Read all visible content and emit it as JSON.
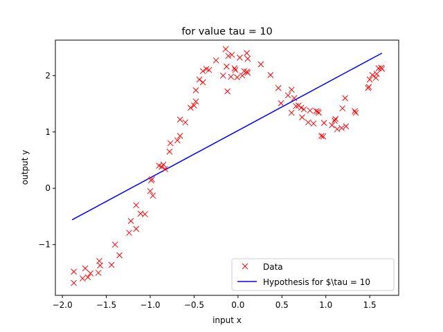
{
  "chart_data": {
    "type": "scatter",
    "title": "for value tau = 10",
    "xlabel": "input x",
    "ylabel": "output y",
    "xlim": [
      -2.08,
      1.83
    ],
    "ylim": [
      -1.9,
      2.63
    ],
    "xticks": [
      -2.0,
      -1.5,
      -1.0,
      -0.5,
      0.0,
      0.5,
      1.0,
      1.5
    ],
    "xtick_labels": [
      "−2.0",
      "−1.5",
      "−1.0",
      "−0.5",
      "0.0",
      "0.5",
      "1.0",
      "1.5"
    ],
    "yticks": [
      -1,
      0,
      1,
      2
    ],
    "ytick_labels": [
      "−1",
      "0",
      "1",
      "2"
    ],
    "grid": false,
    "legend": {
      "position": "lower-right"
    },
    "series": [
      {
        "name": "Data",
        "kind": "scatter",
        "marker": "x",
        "color": "#ff0000",
        "points": [
          [
            -1.87,
            -1.48
          ],
          [
            -1.87,
            -1.68
          ],
          [
            -1.77,
            -1.6
          ],
          [
            -1.74,
            -1.42
          ],
          [
            -1.71,
            -1.58
          ],
          [
            -1.68,
            -1.51
          ],
          [
            -1.59,
            -1.5
          ],
          [
            -1.58,
            -1.29
          ],
          [
            -1.57,
            -1.37
          ],
          [
            -1.44,
            -1.36
          ],
          [
            -1.4,
            -1.0
          ],
          [
            -1.35,
            -1.19
          ],
          [
            -1.24,
            -0.79
          ],
          [
            -1.22,
            -0.58
          ],
          [
            -1.16,
            -0.3
          ],
          [
            -1.16,
            -0.72
          ],
          [
            -1.11,
            -0.45
          ],
          [
            -1.06,
            -0.46
          ],
          [
            -1.0,
            -0.05
          ],
          [
            -0.99,
            0.14
          ],
          [
            -0.98,
            0.16
          ],
          [
            -0.97,
            -0.13
          ],
          [
            -0.9,
            0.4
          ],
          [
            -0.87,
            0.38
          ],
          [
            -0.85,
            0.42
          ],
          [
            -0.83,
            0.34
          ],
          [
            -0.78,
            0.65
          ],
          [
            -0.77,
            0.8
          ],
          [
            -0.69,
            0.85
          ],
          [
            -0.66,
            0.93
          ],
          [
            -0.66,
            1.22
          ],
          [
            -0.6,
            1.17
          ],
          [
            -0.54,
            1.43
          ],
          [
            -0.5,
            1.47
          ],
          [
            -0.48,
            1.54
          ],
          [
            -0.48,
            1.74
          ],
          [
            -0.44,
            1.93
          ],
          [
            -0.4,
            1.88
          ],
          [
            -0.4,
            2.08
          ],
          [
            -0.36,
            2.12
          ],
          [
            -0.33,
            2.1
          ],
          [
            -0.25,
            2.27
          ],
          [
            -0.17,
            2.0
          ],
          [
            -0.14,
            2.47
          ],
          [
            -0.13,
            2.16
          ],
          [
            -0.12,
            1.72
          ],
          [
            -0.11,
            2.35
          ],
          [
            -0.08,
            1.98
          ],
          [
            -0.07,
            2.37
          ],
          [
            -0.04,
            2.13
          ],
          [
            -0.03,
            2.1
          ],
          [
            -0.01,
            1.97
          ],
          [
            0.02,
            2.32
          ],
          [
            0.05,
            2.0
          ],
          [
            0.07,
            2.08
          ],
          [
            0.1,
            2.07
          ],
          [
            0.1,
            2.4
          ],
          [
            0.11,
            2.3
          ],
          [
            0.11,
            2.05
          ],
          [
            0.26,
            2.2
          ],
          [
            0.37,
            2.01
          ],
          [
            0.46,
            1.78
          ],
          [
            0.49,
            1.51
          ],
          [
            0.57,
            1.65
          ],
          [
            0.61,
            1.75
          ],
          [
            0.61,
            1.34
          ],
          [
            0.64,
            1.6
          ],
          [
            0.66,
            1.46
          ],
          [
            0.69,
            1.47
          ],
          [
            0.72,
            1.43
          ],
          [
            0.73,
            1.26
          ],
          [
            0.75,
            1.4
          ],
          [
            0.8,
            1.17
          ],
          [
            0.82,
            1.38
          ],
          [
            0.86,
            1.15
          ],
          [
            0.89,
            1.37
          ],
          [
            0.91,
            1.36
          ],
          [
            0.92,
            1.34
          ],
          [
            0.95,
            0.93
          ],
          [
            0.97,
            0.92
          ],
          [
            0.98,
            1.16
          ],
          [
            1.07,
            1.12
          ],
          [
            1.1,
            1.2
          ],
          [
            1.11,
            1.23
          ],
          [
            1.13,
            1.05
          ],
          [
            1.18,
            1.07
          ],
          [
            1.19,
            1.42
          ],
          [
            1.22,
            1.6
          ],
          [
            1.23,
            1.1
          ],
          [
            1.33,
            1.37
          ],
          [
            1.34,
            1.34
          ],
          [
            1.48,
            1.78
          ],
          [
            1.49,
            1.8
          ],
          [
            1.5,
            1.93
          ],
          [
            1.53,
            2.01
          ],
          [
            1.57,
            1.96
          ],
          [
            1.58,
            2.03
          ],
          [
            1.6,
            2.13
          ],
          [
            1.63,
            2.14
          ],
          [
            1.64,
            2.12
          ]
        ]
      },
      {
        "name": "Hypothesis for $\\tau =  10",
        "kind": "line",
        "color": "#0000ff",
        "points": [
          [
            -1.89,
            -0.56
          ],
          [
            1.64,
            2.4
          ]
        ]
      }
    ]
  }
}
